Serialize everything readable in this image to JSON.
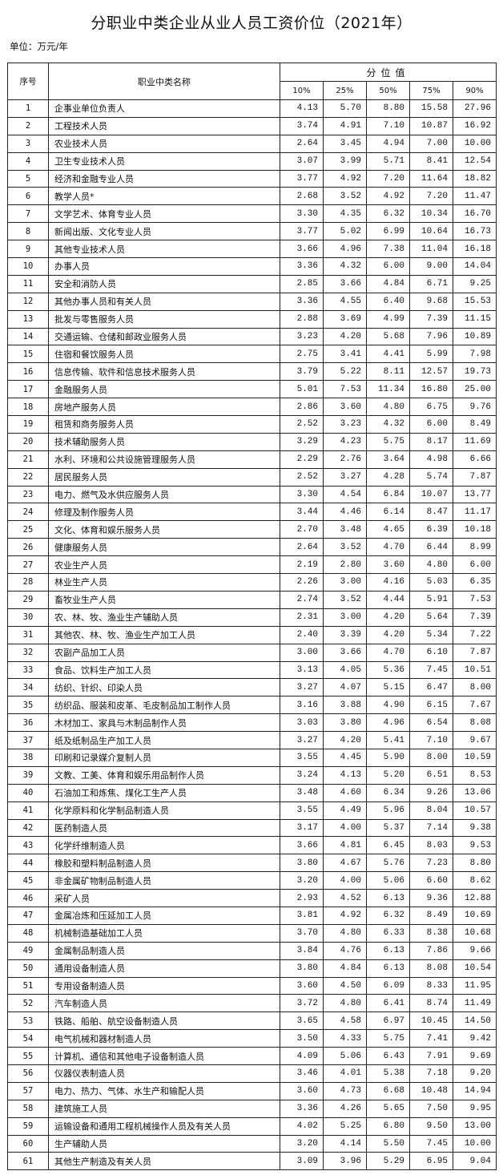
{
  "title": "分职业中类企业从业人员工资价位（2021年）",
  "unit": "单位：万元/年",
  "headers": {
    "no": "序号",
    "name": "职业中类名称",
    "group": "分位值",
    "percentiles": [
      "10%",
      "25%",
      "50%",
      "75%",
      "90%"
    ]
  },
  "rows": [
    [
      "1",
      "企事业单位负责人",
      "4.13",
      "5.70",
      "8.80",
      "15.58",
      "27.96"
    ],
    [
      "2",
      "工程技术人员",
      "3.74",
      "4.91",
      "7.10",
      "10.87",
      "16.92"
    ],
    [
      "3",
      "农业技术人员",
      "2.64",
      "3.45",
      "4.94",
      "7.00",
      "10.00"
    ],
    [
      "4",
      "卫生专业技术人员",
      "3.07",
      "3.99",
      "5.71",
      "8.41",
      "12.54"
    ],
    [
      "5",
      "经济和金融专业人员",
      "3.77",
      "4.92",
      "7.20",
      "11.64",
      "18.82"
    ],
    [
      "6",
      "教学人员*",
      "2.68",
      "3.52",
      "4.92",
      "7.20",
      "11.47"
    ],
    [
      "7",
      "文学艺术、体育专业人员",
      "3.30",
      "4.35",
      "6.32",
      "10.34",
      "16.70"
    ],
    [
      "8",
      "新闻出版、文化专业人员",
      "3.77",
      "5.02",
      "6.99",
      "10.64",
      "16.73"
    ],
    [
      "9",
      "其他专业技术人员",
      "3.66",
      "4.96",
      "7.38",
      "11.04",
      "16.18"
    ],
    [
      "10",
      "办事人员",
      "3.36",
      "4.32",
      "6.00",
      "9.00",
      "14.04"
    ],
    [
      "11",
      "安全和消防人员",
      "2.85",
      "3.66",
      "4.84",
      "6.71",
      "9.25"
    ],
    [
      "12",
      "其他办事人员和有关人员",
      "3.36",
      "4.55",
      "6.40",
      "9.68",
      "15.53"
    ],
    [
      "13",
      "批发与零售服务人员",
      "2.88",
      "3.69",
      "4.99",
      "7.39",
      "11.15"
    ],
    [
      "14",
      "交通运输、仓储和邮政业服务人员",
      "3.23",
      "4.20",
      "5.68",
      "7.96",
      "10.89"
    ],
    [
      "15",
      "住宿和餐饮服务人员",
      "2.75",
      "3.41",
      "4.41",
      "5.99",
      "7.98"
    ],
    [
      "16",
      "信息传输、软件和信息技术服务人员",
      "3.79",
      "5.22",
      "8.11",
      "12.57",
      "19.73"
    ],
    [
      "17",
      "金融服务人员",
      "5.01",
      "7.53",
      "11.34",
      "16.80",
      "25.00"
    ],
    [
      "18",
      "房地产服务人员",
      "2.86",
      "3.60",
      "4.80",
      "6.75",
      "9.76"
    ],
    [
      "19",
      "租赁和商务服务人员",
      "2.52",
      "3.23",
      "4.32",
      "6.00",
      "8.49"
    ],
    [
      "20",
      "技术辅助服务人员",
      "3.29",
      "4.23",
      "5.75",
      "8.17",
      "11.69"
    ],
    [
      "21",
      "水利、环境和公共设施管理服务人员",
      "2.29",
      "2.76",
      "3.64",
      "4.98",
      "6.66"
    ],
    [
      "22",
      "居民服务人员",
      "2.52",
      "3.27",
      "4.28",
      "5.74",
      "7.87"
    ],
    [
      "23",
      "电力、燃气及水供应服务人员",
      "3.30",
      "4.54",
      "6.84",
      "10.07",
      "13.77"
    ],
    [
      "24",
      "修理及制作服务人员",
      "3.44",
      "4.46",
      "6.14",
      "8.47",
      "11.17"
    ],
    [
      "25",
      "文化、体育和娱乐服务人员",
      "2.70",
      "3.48",
      "4.65",
      "6.39",
      "10.18"
    ],
    [
      "26",
      "健康服务人员",
      "2.64",
      "3.52",
      "4.70",
      "6.44",
      "8.99"
    ],
    [
      "27",
      "农业生产人员",
      "2.19",
      "2.80",
      "3.60",
      "4.80",
      "6.00"
    ],
    [
      "28",
      "林业生产人员",
      "2.26",
      "3.00",
      "4.16",
      "5.03",
      "6.35"
    ],
    [
      "29",
      "畜牧业生产人员",
      "2.74",
      "3.52",
      "4.44",
      "5.91",
      "7.53"
    ],
    [
      "30",
      "农、林、牧、渔业生产辅助人员",
      "2.31",
      "3.00",
      "4.20",
      "5.64",
      "7.39"
    ],
    [
      "31",
      "其他农、林、牧、渔业生产加工人员",
      "2.40",
      "3.39",
      "4.20",
      "5.34",
      "7.22"
    ],
    [
      "32",
      "农副产品加工人员",
      "3.00",
      "3.66",
      "4.70",
      "6.10",
      "7.87"
    ],
    [
      "33",
      "食品、饮料生产加工人员",
      "3.13",
      "4.05",
      "5.36",
      "7.45",
      "10.51"
    ],
    [
      "34",
      "纺织、针织、印染人员",
      "3.27",
      "4.07",
      "5.15",
      "6.47",
      "8.00"
    ],
    [
      "35",
      "纺织品、服装和皮革、毛皮制品加工制作人员",
      "3.16",
      "3.88",
      "4.90",
      "6.15",
      "7.67"
    ],
    [
      "36",
      "木材加工、家具与木制品制作人员",
      "3.03",
      "3.80",
      "4.96",
      "6.54",
      "8.08"
    ],
    [
      "37",
      "纸及纸制品生产加工人员",
      "3.27",
      "4.20",
      "5.41",
      "7.10",
      "9.67"
    ],
    [
      "38",
      "印刷和记录媒介复制人员",
      "3.55",
      "4.45",
      "5.90",
      "8.00",
      "10.59"
    ],
    [
      "39",
      "文教、工美、体育和娱乐用品制作人员",
      "3.24",
      "4.13",
      "5.20",
      "6.51",
      "8.53"
    ],
    [
      "40",
      "石油加工和炼焦、煤化工生产人员",
      "3.48",
      "4.60",
      "6.34",
      "9.26",
      "13.06"
    ],
    [
      "41",
      "化学原料和化学制品制造人员",
      "3.55",
      "4.49",
      "5.96",
      "8.04",
      "10.57"
    ],
    [
      "42",
      "医药制造人员",
      "3.17",
      "4.00",
      "5.37",
      "7.14",
      "9.38"
    ],
    [
      "43",
      "化学纤维制造人员",
      "3.66",
      "4.81",
      "6.45",
      "8.03",
      "9.53"
    ],
    [
      "44",
      "橡胶和塑料制品制造人员",
      "3.80",
      "4.67",
      "5.76",
      "7.23",
      "8.80"
    ],
    [
      "45",
      "非金属矿物制品制造人员",
      "3.20",
      "4.00",
      "5.06",
      "6.60",
      "8.62"
    ],
    [
      "46",
      "采矿人员",
      "2.93",
      "4.52",
      "6.13",
      "9.36",
      "12.88"
    ],
    [
      "47",
      "金属冶炼和压延加工人员",
      "3.81",
      "4.92",
      "6.32",
      "8.49",
      "10.69"
    ],
    [
      "48",
      "机械制造基础加工人员",
      "3.70",
      "4.80",
      "6.33",
      "8.38",
      "10.68"
    ],
    [
      "49",
      "金属制品制造人员",
      "3.84",
      "4.76",
      "6.13",
      "7.86",
      "9.66"
    ],
    [
      "50",
      "通用设备制造人员",
      "3.80",
      "4.84",
      "6.13",
      "8.08",
      "10.54"
    ],
    [
      "51",
      "专用设备制造人员",
      "3.60",
      "4.50",
      "6.09",
      "8.33",
      "11.95"
    ],
    [
      "52",
      "汽车制造人员",
      "3.72",
      "4.80",
      "6.41",
      "8.74",
      "11.49"
    ],
    [
      "53",
      "铁路、船舶、航空设备制造人员",
      "3.65",
      "4.58",
      "6.97",
      "10.45",
      "14.50"
    ],
    [
      "54",
      "电气机械和器材制造人员",
      "3.50",
      "4.33",
      "5.75",
      "7.41",
      "9.42"
    ],
    [
      "55",
      "计算机、通信和其他电子设备制造人员",
      "4.09",
      "5.06",
      "6.43",
      "7.91",
      "9.69"
    ],
    [
      "56",
      "仪器仪表制造人员",
      "3.46",
      "4.01",
      "5.38",
      "7.18",
      "9.20"
    ],
    [
      "57",
      "电力、热力、气体、水生产和输配人员",
      "3.60",
      "4.73",
      "6.68",
      "10.48",
      "14.94"
    ],
    [
      "58",
      "建筑施工人员",
      "3.36",
      "4.26",
      "5.65",
      "7.50",
      "9.95"
    ],
    [
      "59",
      "运输设备和通用工程机械操作人员及有关人员",
      "4.02",
      "5.25",
      "6.80",
      "9.50",
      "13.00"
    ],
    [
      "60",
      "生产辅助人员",
      "3.20",
      "4.14",
      "5.50",
      "7.45",
      "10.00"
    ],
    [
      "61",
      "其他生产制造及有关人员",
      "3.09",
      "3.96",
      "5.29",
      "6.95",
      "9.04"
    ]
  ]
}
